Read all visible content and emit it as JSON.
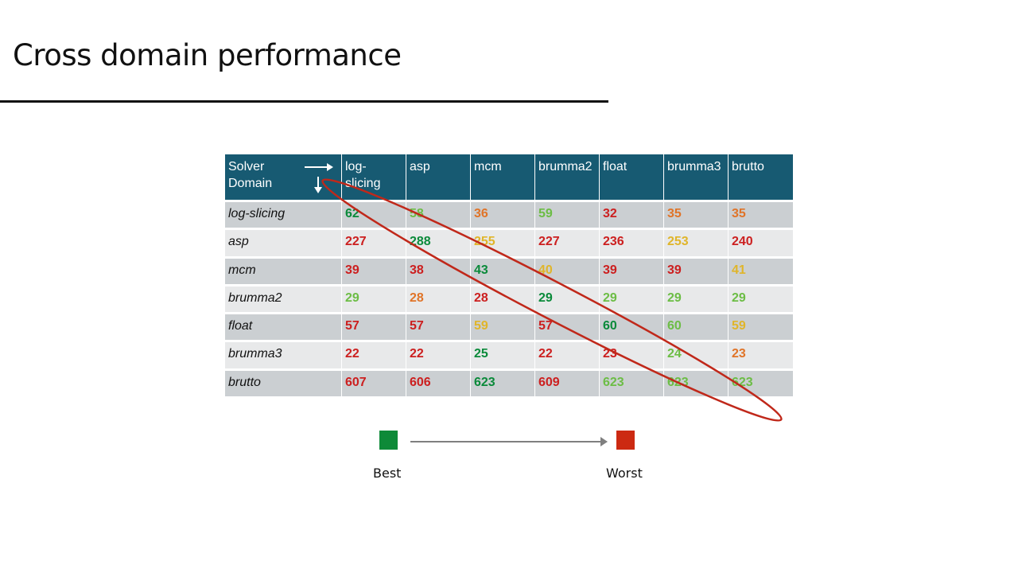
{
  "title": "Cross domain performance",
  "table": {
    "corner": {
      "line1": "Solver",
      "line2": "Domain"
    },
    "columns": [
      {
        "line1": "log-",
        "line2": "slicing"
      },
      {
        "line1": "asp",
        "line2": ""
      },
      {
        "line1": "mcm",
        "line2": ""
      },
      {
        "line1": "brumma2",
        "line2": ""
      },
      {
        "line1": "float",
        "line2": ""
      },
      {
        "line1": "brumma3",
        "line2": ""
      },
      {
        "line1": "brutto",
        "line2": ""
      }
    ],
    "rows": [
      {
        "domain": "log-slicing",
        "cells": [
          {
            "v": "62",
            "c": "best"
          },
          {
            "v": "58",
            "c": "good"
          },
          {
            "v": "36",
            "c": "bad"
          },
          {
            "v": "59",
            "c": "good"
          },
          {
            "v": "32",
            "c": "worst"
          },
          {
            "v": "35",
            "c": "bad"
          },
          {
            "v": "35",
            "c": "bad"
          }
        ]
      },
      {
        "domain": "asp",
        "cells": [
          {
            "v": "227",
            "c": "worst"
          },
          {
            "v": "288",
            "c": "best"
          },
          {
            "v": "255",
            "c": "mid"
          },
          {
            "v": "227",
            "c": "worst"
          },
          {
            "v": "236",
            "c": "worst"
          },
          {
            "v": "253",
            "c": "mid"
          },
          {
            "v": "240",
            "c": "worst"
          }
        ]
      },
      {
        "domain": "mcm",
        "cells": [
          {
            "v": "39",
            "c": "worst"
          },
          {
            "v": "38",
            "c": "worst"
          },
          {
            "v": "43",
            "c": "best"
          },
          {
            "v": "40",
            "c": "mid"
          },
          {
            "v": "39",
            "c": "worst"
          },
          {
            "v": "39",
            "c": "worst"
          },
          {
            "v": "41",
            "c": "mid"
          }
        ]
      },
      {
        "domain": "brumma2",
        "cells": [
          {
            "v": "29",
            "c": "good"
          },
          {
            "v": "28",
            "c": "bad"
          },
          {
            "v": "28",
            "c": "worst"
          },
          {
            "v": "29",
            "c": "best"
          },
          {
            "v": "29",
            "c": "good"
          },
          {
            "v": "29",
            "c": "good"
          },
          {
            "v": "29",
            "c": "good"
          }
        ]
      },
      {
        "domain": "float",
        "cells": [
          {
            "v": "57",
            "c": "worst"
          },
          {
            "v": "57",
            "c": "worst"
          },
          {
            "v": "59",
            "c": "mid"
          },
          {
            "v": "57",
            "c": "worst"
          },
          {
            "v": "60",
            "c": "best"
          },
          {
            "v": "60",
            "c": "good"
          },
          {
            "v": "59",
            "c": "mid"
          }
        ]
      },
      {
        "domain": "brumma3",
        "cells": [
          {
            "v": "22",
            "c": "worst"
          },
          {
            "v": "22",
            "c": "worst"
          },
          {
            "v": "25",
            "c": "best"
          },
          {
            "v": "22",
            "c": "worst"
          },
          {
            "v": "23",
            "c": "worst"
          },
          {
            "v": "24",
            "c": "good"
          },
          {
            "v": "23",
            "c": "bad"
          }
        ]
      },
      {
        "domain": "brutto",
        "cells": [
          {
            "v": "607",
            "c": "worst"
          },
          {
            "v": "606",
            "c": "worst"
          },
          {
            "v": "623",
            "c": "best"
          },
          {
            "v": "609",
            "c": "worst"
          },
          {
            "v": "623",
            "c": "good"
          },
          {
            "v": "623",
            "c": "good"
          },
          {
            "v": "623",
            "c": "good"
          }
        ]
      }
    ]
  },
  "legend": {
    "best_label": "Best",
    "worst_label": "Worst",
    "best_color": "#0e8a38",
    "worst_color": "#cc2a12"
  },
  "colors": {
    "header_bg": "#175a72",
    "best": "#0a8a3a",
    "good": "#6cbd45",
    "mid": "#e0b52a",
    "bad": "#e07428",
    "worst": "#cc1f1f",
    "highlight_ellipse": "#c0281a"
  }
}
